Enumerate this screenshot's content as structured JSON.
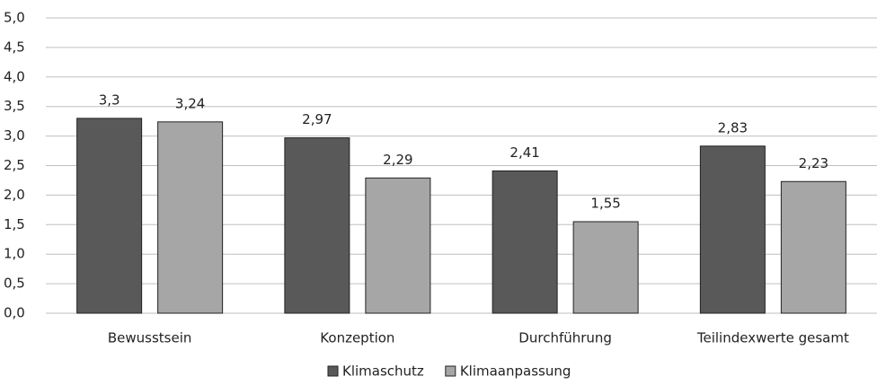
{
  "chart_data": {
    "type": "bar",
    "categories": [
      "Bewusstsein",
      "Konzeption",
      "Durchführung",
      "Teilindexwerte gesamt"
    ],
    "series": [
      {
        "name": "Klimaschutz",
        "color": "#595959",
        "values": [
          3.3,
          2.97,
          2.41,
          2.83
        ],
        "value_labels": [
          "3,3",
          "2,97",
          "2,41",
          "2,83"
        ]
      },
      {
        "name": "Klimaanpassung",
        "color": "#a6a6a6",
        "values": [
          3.24,
          2.29,
          1.55,
          2.23
        ],
        "value_labels": [
          "3,24",
          "2,29",
          "1,55",
          "2,23"
        ]
      }
    ],
    "ylim": [
      0,
      5
    ],
    "yticks": [
      {
        "value": 0,
        "label": "0,0"
      },
      {
        "value": 0.5,
        "label": "0,5"
      },
      {
        "value": 1,
        "label": "1,0"
      },
      {
        "value": 1.5,
        "label": "1,5"
      },
      {
        "value": 2,
        "label": "2,0"
      },
      {
        "value": 2.5,
        "label": "2,5"
      },
      {
        "value": 3,
        "label": "3,0"
      },
      {
        "value": 3.5,
        "label": "3,5"
      },
      {
        "value": 4,
        "label": "4,0"
      },
      {
        "value": 4.5,
        "label": "4,5"
      },
      {
        "value": 5,
        "label": "5,0"
      }
    ],
    "grid": true,
    "legend": "bottom"
  }
}
